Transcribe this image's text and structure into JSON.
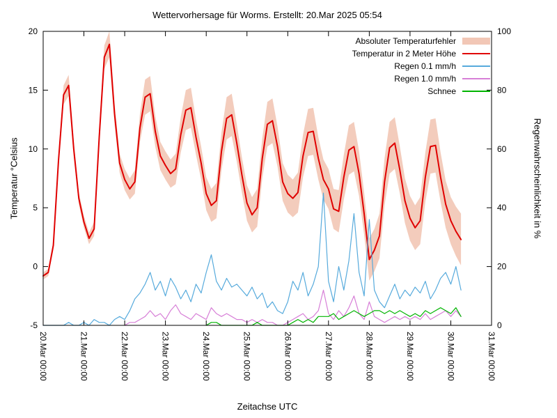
{
  "chart_data": {
    "type": "line",
    "title": "Wettervorhersage für Worms. Erstellt: 20.Mar 2025 05:54",
    "xlabel": "Zeitachse UTC",
    "ylabel_left": "Temperatur °Celsius",
    "ylabel_right": "Regenwahrscheinlichkeit in %",
    "x_tick_labels": [
      "20.Mar 00:00",
      "21.Mar 00:00",
      "22.Mar 00:00",
      "23.Mar 00:00",
      "24.Mar 00:00",
      "25.Mar 00:00",
      "26.Mar 00:00",
      "27.Mar 00:00",
      "28.Mar 00:00",
      "29.Mar 00:00",
      "30.Mar 00:00",
      "31.Mar 00:00"
    ],
    "y_left_ticks": [
      -5,
      0,
      5,
      10,
      15,
      20
    ],
    "y_right_ticks": [
      0,
      20,
      40,
      60,
      80,
      100
    ],
    "y_left_range": [
      -5,
      20
    ],
    "y_right_range": [
      0,
      100
    ],
    "x_range_days": [
      0,
      11
    ],
    "step_hours": 3,
    "start": "20.Mar 00:00",
    "grid": false,
    "legend_position": "top-right-inside",
    "series": [
      {
        "name": "Absoluter Temperaturfehler",
        "type": "band",
        "axis": "left",
        "color": "#e8997a",
        "center": "Temperatur in 2 Meter Höhe",
        "values": [
          0.3,
          0.3,
          0.4,
          0.5,
          0.8,
          0.9,
          0.7,
          0.5,
          0.5,
          0.5,
          0.6,
          0.8,
          1.0,
          1.1,
          0.9,
          0.8,
          0.9,
          0.9,
          1.0,
          1.2,
          1.5,
          1.5,
          1.3,
          1.2,
          1.2,
          1.2,
          1.3,
          1.5,
          1.7,
          1.7,
          1.5,
          1.4,
          1.4,
          1.4,
          1.5,
          1.6,
          1.8,
          1.8,
          1.6,
          1.5,
          1.5,
          1.5,
          1.6,
          1.7,
          1.9,
          1.9,
          1.7,
          1.6,
          1.6,
          1.6,
          1.7,
          1.8,
          2.0,
          2.0,
          1.8,
          1.7,
          1.7,
          1.7,
          1.8,
          1.9,
          2.1,
          2.1,
          1.9,
          1.8,
          1.8,
          1.8,
          1.9,
          2.0,
          2.2,
          2.2,
          2.0,
          1.9,
          1.9,
          1.9,
          2.0,
          2.1,
          2.3,
          2.3,
          2.1,
          2.0,
          2.0,
          2.1,
          2.2
        ]
      },
      {
        "name": "Temperatur in 2 Meter Höhe",
        "type": "line",
        "axis": "left",
        "color": "#e00000",
        "values": [
          -0.8,
          -0.5,
          1.8,
          9.0,
          14.6,
          15.4,
          10.0,
          5.8,
          3.8,
          2.4,
          3.2,
          11.0,
          17.8,
          18.9,
          13.0,
          8.8,
          7.4,
          6.6,
          7.2,
          11.8,
          14.4,
          14.7,
          11.5,
          9.4,
          8.6,
          7.9,
          8.3,
          11.2,
          13.3,
          13.5,
          11.0,
          8.8,
          6.2,
          5.2,
          5.6,
          9.8,
          12.6,
          12.9,
          10.5,
          7.8,
          5.4,
          4.4,
          5.0,
          9.2,
          12.1,
          12.4,
          10.2,
          7.2,
          6.2,
          5.8,
          6.3,
          9.4,
          11.4,
          11.5,
          9.2,
          7.4,
          6.6,
          4.9,
          4.7,
          7.6,
          9.9,
          10.2,
          7.9,
          4.5,
          0.6,
          1.4,
          2.6,
          7.2,
          10.1,
          10.5,
          8.2,
          5.6,
          4.1,
          3.3,
          3.9,
          7.6,
          10.2,
          10.3,
          7.6,
          5.3,
          3.9,
          3.0,
          2.3
        ]
      },
      {
        "name": "Regen 0.1 mm/h",
        "type": "line",
        "axis": "right",
        "color": "#56aadc",
        "values": [
          0,
          0,
          0,
          0,
          0,
          1,
          0,
          0,
          1,
          0,
          2,
          1,
          1,
          0,
          2,
          3,
          2,
          5,
          9,
          11,
          14,
          18,
          12,
          15,
          10,
          16,
          13,
          9,
          12,
          8,
          14,
          11,
          18,
          24,
          15,
          12,
          16,
          13,
          14,
          12,
          10,
          13,
          9,
          11,
          6,
          8,
          5,
          4,
          8,
          15,
          12,
          18,
          10,
          14,
          20,
          45,
          15,
          8,
          20,
          12,
          22,
          38,
          18,
          10,
          36,
          12,
          8,
          6,
          10,
          14,
          9,
          12,
          10,
          13,
          11,
          15,
          9,
          12,
          16,
          18,
          14,
          20,
          12
        ]
      },
      {
        "name": "Regen 1.0 mm/h",
        "type": "line",
        "axis": "right",
        "color": "#d77fd7",
        "values": [
          null,
          null,
          null,
          null,
          null,
          null,
          null,
          null,
          null,
          null,
          null,
          null,
          null,
          null,
          null,
          null,
          0,
          1,
          1,
          2,
          3,
          5,
          3,
          4,
          2,
          5,
          7,
          4,
          3,
          2,
          4,
          3,
          2,
          6,
          4,
          3,
          4,
          3,
          2,
          2,
          1,
          2,
          1,
          2,
          1,
          1,
          0,
          0,
          1,
          2,
          3,
          4,
          2,
          3,
          5,
          12,
          4,
          2,
          5,
          3,
          6,
          10,
          4,
          2,
          8,
          3,
          2,
          1,
          2,
          3,
          2,
          3,
          2,
          3,
          2,
          4,
          2,
          3,
          4,
          5,
          3,
          5,
          3
        ]
      },
      {
        "name": "Schnee",
        "type": "line",
        "axis": "right",
        "color": "#00b400",
        "values": [
          null,
          null,
          null,
          null,
          null,
          null,
          null,
          null,
          null,
          null,
          null,
          null,
          null,
          null,
          null,
          null,
          null,
          null,
          null,
          null,
          null,
          null,
          null,
          null,
          null,
          null,
          null,
          null,
          null,
          null,
          null,
          null,
          0,
          1,
          1,
          0,
          0,
          0,
          0,
          0,
          0,
          0,
          1,
          0,
          0,
          0,
          0,
          0,
          0,
          1,
          2,
          1,
          2,
          1,
          3,
          3,
          3,
          4,
          2,
          3,
          4,
          5,
          4,
          3,
          4,
          5,
          5,
          4,
          5,
          4,
          5,
          4,
          3,
          4,
          3,
          5,
          4,
          5,
          6,
          5,
          4,
          6,
          3
        ]
      }
    ]
  }
}
